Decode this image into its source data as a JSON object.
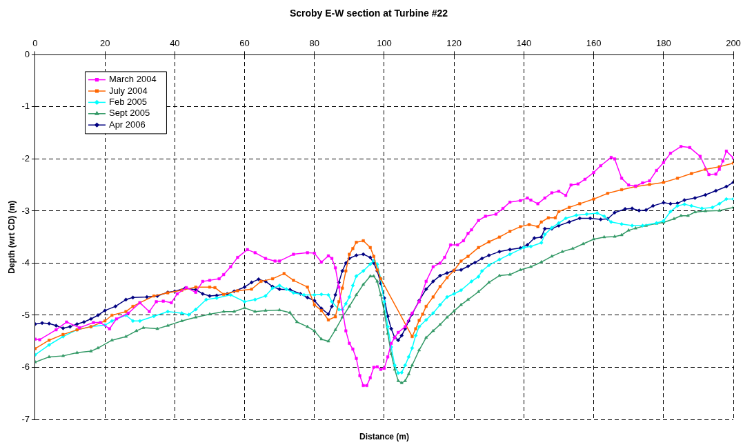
{
  "chart_data": {
    "type": "line",
    "title": "Scroby E-W section at Turbine #22",
    "xlabel": "Distance (m)",
    "ylabel": "Depth (wrt CD) (m)",
    "xlim": [
      0,
      200
    ],
    "xticks": [
      0,
      20,
      40,
      60,
      80,
      100,
      120,
      140,
      160,
      180,
      200
    ],
    "ylim": [
      -7,
      0
    ],
    "yticks": [
      -7,
      -6,
      -5,
      -4,
      -3,
      -2,
      -1,
      0
    ],
    "grid": true,
    "legend": "top left",
    "line_style": "solid",
    "series": [
      {
        "name": "March 2004",
        "color": "#ff00ff",
        "marker": "square",
        "x": [
          0,
          1.3,
          6,
          9,
          12.7,
          16.7,
          18.7,
          21.3,
          23.3,
          26.7,
          30,
          32.7,
          34.7,
          36.7,
          39,
          40.7,
          43.3,
          46,
          48,
          50,
          52.7,
          54,
          56,
          58,
          60.8,
          63,
          66,
          68.7,
          70,
          74,
          78,
          80,
          82,
          84,
          85,
          86,
          87,
          89,
          90,
          91,
          92,
          93,
          94,
          95,
          96,
          97,
          98,
          99,
          100,
          101,
          102,
          103,
          104,
          106,
          108,
          110,
          112,
          114,
          116,
          117.3,
          119,
          121,
          122.7,
          124,
          125,
          127,
          129,
          132,
          134,
          136,
          139,
          141,
          142,
          144,
          146,
          148,
          150,
          152,
          153.5,
          155.5,
          157.5,
          160,
          162,
          165,
          166,
          168,
          170,
          172,
          174,
          176,
          178,
          180,
          182,
          185,
          187.5,
          190.5,
          193,
          195,
          196,
          197,
          198,
          200
        ],
        "values": [
          -5.46,
          -5.47,
          -5.28,
          -5.13,
          -5.24,
          -5.14,
          -5.14,
          -5.26,
          -5.07,
          -4.96,
          -4.76,
          -4.93,
          -4.74,
          -4.73,
          -4.76,
          -4.59,
          -4.47,
          -4.56,
          -4.35,
          -4.33,
          -4.3,
          -4.22,
          -4.07,
          -3.89,
          -3.74,
          -3.8,
          -3.91,
          -3.96,
          -3.96,
          -3.83,
          -3.8,
          -3.81,
          -3.98,
          -3.86,
          -3.91,
          -4.09,
          -4.46,
          -5.3,
          -5.54,
          -5.65,
          -5.83,
          -6.16,
          -6.35,
          -6.35,
          -6.2,
          -6.0,
          -5.99,
          -6.04,
          -6.02,
          -5.8,
          -5.54,
          -5.43,
          -5.33,
          -5.22,
          -4.96,
          -4.74,
          -4.35,
          -4.07,
          -4.0,
          -3.89,
          -3.65,
          -3.65,
          -3.57,
          -3.43,
          -3.36,
          -3.18,
          -3.1,
          -3.06,
          -2.95,
          -2.83,
          -2.8,
          -2.75,
          -2.79,
          -2.86,
          -2.75,
          -2.65,
          -2.62,
          -2.7,
          -2.5,
          -2.48,
          -2.39,
          -2.26,
          -2.13,
          -1.97,
          -2.0,
          -2.37,
          -2.5,
          -2.52,
          -2.46,
          -2.42,
          -2.22,
          -2.07,
          -1.89,
          -1.76,
          -1.78,
          -1.95,
          -2.3,
          -2.29,
          -2.2,
          -2.04,
          -1.85,
          -1.98
        ]
      },
      {
        "name": "July 2004",
        "color": "#ff6600",
        "marker": "square",
        "x": [
          0,
          4,
          8,
          12,
          16,
          20,
          22,
          26,
          28,
          30,
          34,
          38,
          42,
          46,
          50,
          51.5,
          54,
          58,
          62,
          64.7,
          68,
          71.3,
          74,
          78,
          80,
          82,
          84,
          86,
          87,
          88,
          89,
          90,
          91,
          92,
          94,
          96,
          97,
          98,
          99,
          108,
          109,
          110,
          111,
          112,
          114,
          116,
          118,
          120,
          122,
          124,
          127,
          130,
          133,
          136,
          139,
          141.5,
          144,
          145,
          147,
          149,
          150,
          153,
          156,
          160,
          164,
          168,
          172,
          176,
          180,
          184,
          188,
          192,
          196,
          200
        ],
        "values": [
          -5.64,
          -5.48,
          -5.37,
          -5.28,
          -5.22,
          -5.11,
          -5.0,
          -4.93,
          -4.83,
          -4.76,
          -4.63,
          -4.57,
          -4.52,
          -4.46,
          -4.46,
          -4.47,
          -4.6,
          -4.53,
          -4.5,
          -4.35,
          -4.3,
          -4.2,
          -4.33,
          -4.46,
          -4.8,
          -4.91,
          -5.09,
          -5.03,
          -4.74,
          -4.48,
          -4.15,
          -3.83,
          -3.72,
          -3.6,
          -3.57,
          -3.7,
          -3.87,
          -4.13,
          -4.3,
          -5.41,
          -5.26,
          -5.1,
          -4.98,
          -4.83,
          -4.65,
          -4.45,
          -4.28,
          -4.14,
          -3.96,
          -3.87,
          -3.7,
          -3.59,
          -3.5,
          -3.39,
          -3.3,
          -3.26,
          -3.3,
          -3.21,
          -3.13,
          -3.13,
          -3.01,
          -2.93,
          -2.86,
          -2.77,
          -2.66,
          -2.59,
          -2.53,
          -2.49,
          -2.45,
          -2.37,
          -2.28,
          -2.2,
          -2.15,
          -2.08
        ]
      },
      {
        "name": "Feb 2005",
        "color": "#00ffff",
        "marker": "diamond",
        "x": [
          0,
          4,
          8,
          12,
          16,
          20,
          22,
          26,
          28,
          30,
          34,
          38,
          42,
          44,
          46,
          49,
          52,
          56,
          60,
          63,
          66,
          68,
          70,
          72,
          74,
          77,
          80,
          82,
          84,
          85,
          87,
          88,
          89,
          90,
          91,
          92,
          94,
          96,
          97,
          98,
          99,
          100,
          101,
          102,
          103,
          104,
          105,
          106,
          107,
          108,
          109,
          110,
          112,
          114,
          116,
          118,
          120,
          122,
          125,
          127,
          128,
          130,
          133,
          136,
          140,
          142,
          145,
          146,
          148,
          150,
          152,
          155,
          158,
          161,
          163,
          165,
          168,
          171,
          174,
          178,
          180,
          182,
          184,
          186,
          188,
          191,
          194,
          196,
          198,
          200
        ],
        "values": [
          -5.76,
          -5.57,
          -5.41,
          -5.28,
          -5.22,
          -5.19,
          -5.11,
          -5.0,
          -5.11,
          -5.11,
          -5.02,
          -4.93,
          -4.96,
          -4.99,
          -4.89,
          -4.7,
          -4.67,
          -4.61,
          -4.74,
          -4.7,
          -4.63,
          -4.48,
          -4.43,
          -4.5,
          -4.57,
          -4.61,
          -4.61,
          -4.6,
          -4.61,
          -4.74,
          -4.89,
          -4.89,
          -4.78,
          -4.65,
          -4.43,
          -4.25,
          -4.15,
          -4.02,
          -3.95,
          -4.02,
          -4.3,
          -4.74,
          -5.22,
          -5.61,
          -5.96,
          -6.11,
          -6.1,
          -5.96,
          -5.8,
          -5.63,
          -5.39,
          -5.22,
          -5.09,
          -4.96,
          -4.8,
          -4.65,
          -4.59,
          -4.52,
          -4.35,
          -4.26,
          -4.15,
          -4.04,
          -3.93,
          -3.83,
          -3.7,
          -3.68,
          -3.61,
          -3.45,
          -3.32,
          -3.23,
          -3.14,
          -3.08,
          -3.06,
          -3.04,
          -3.1,
          -3.21,
          -3.25,
          -3.28,
          -3.28,
          -3.23,
          -3.19,
          -3.01,
          -2.9,
          -2.87,
          -2.9,
          -2.95,
          -2.93,
          -2.86,
          -2.77,
          -2.77
        ]
      },
      {
        "name": "Sept 2005",
        "color": "#339966",
        "marker": "triangle",
        "x": [
          0,
          4,
          8,
          12,
          16,
          18,
          22,
          26,
          29,
          31,
          35,
          38,
          42,
          46,
          50,
          54,
          57,
          60,
          63,
          66,
          70,
          73,
          75,
          78,
          80,
          82,
          84,
          86,
          88,
          90,
          92,
          94,
          96,
          97,
          98,
          99,
          100,
          101,
          102,
          103,
          104,
          105,
          106,
          107,
          108,
          110,
          112,
          114,
          116,
          118,
          120,
          122,
          124,
          127,
          130,
          133,
          136,
          139,
          142,
          145,
          148,
          151,
          154,
          157,
          160,
          163,
          166,
          168,
          170,
          172,
          175,
          178,
          180,
          183,
          185,
          187,
          189,
          192,
          196,
          200
        ],
        "values": [
          -5.9,
          -5.8,
          -5.78,
          -5.72,
          -5.69,
          -5.63,
          -5.48,
          -5.41,
          -5.3,
          -5.24,
          -5.26,
          -5.2,
          -5.11,
          -5.04,
          -4.98,
          -4.93,
          -4.93,
          -4.86,
          -4.93,
          -4.91,
          -4.9,
          -4.95,
          -5.13,
          -5.22,
          -5.3,
          -5.46,
          -5.5,
          -5.28,
          -5.04,
          -4.83,
          -4.61,
          -4.41,
          -4.25,
          -4.25,
          -4.35,
          -4.61,
          -4.93,
          -5.35,
          -5.74,
          -6.04,
          -6.26,
          -6.3,
          -6.26,
          -6.13,
          -5.96,
          -5.67,
          -5.43,
          -5.3,
          -5.18,
          -5.04,
          -4.92,
          -4.8,
          -4.7,
          -4.55,
          -4.37,
          -4.24,
          -4.22,
          -4.13,
          -4.07,
          -3.98,
          -3.87,
          -3.78,
          -3.72,
          -3.63,
          -3.54,
          -3.5,
          -3.49,
          -3.46,
          -3.37,
          -3.33,
          -3.28,
          -3.24,
          -3.22,
          -3.15,
          -3.09,
          -3.09,
          -3.02,
          -3.0,
          -2.99,
          -2.93
        ]
      },
      {
        "name": "Apr 2006",
        "color": "#000080",
        "marker": "diamond",
        "x": [
          0,
          2,
          4,
          6,
          8,
          10,
          12,
          14,
          16,
          18,
          20,
          23,
          26,
          28,
          32,
          35,
          38,
          40,
          43,
          46,
          48,
          50,
          52,
          55,
          57,
          60,
          62,
          64,
          66,
          68,
          70,
          73,
          76,
          78,
          80,
          82,
          84,
          85,
          86,
          87,
          88,
          89,
          90,
          92,
          94,
          96,
          97,
          98,
          99,
          100,
          101,
          102,
          103,
          104,
          105,
          106,
          107,
          108,
          110,
          112,
          114,
          116,
          118,
          120,
          122,
          124,
          126,
          128,
          130,
          133,
          136,
          139,
          141,
          143,
          145,
          146,
          148,
          150,
          153,
          156,
          159,
          162,
          164,
          166,
          169,
          171,
          173,
          175,
          177,
          180,
          182,
          184,
          186,
          189,
          192,
          195,
          198,
          200
        ],
        "values": [
          -5.17,
          -5.15,
          -5.16,
          -5.2,
          -5.25,
          -5.22,
          -5.17,
          -5.13,
          -5.07,
          -5.0,
          -4.91,
          -4.83,
          -4.7,
          -4.66,
          -4.65,
          -4.63,
          -4.56,
          -4.54,
          -4.48,
          -4.51,
          -4.59,
          -4.63,
          -4.62,
          -4.59,
          -4.54,
          -4.46,
          -4.37,
          -4.31,
          -4.35,
          -4.45,
          -4.5,
          -4.51,
          -4.59,
          -4.66,
          -4.72,
          -4.87,
          -4.98,
          -4.83,
          -4.61,
          -4.37,
          -4.15,
          -4.0,
          -3.91,
          -3.85,
          -3.83,
          -3.89,
          -4.0,
          -4.15,
          -4.39,
          -4.67,
          -5.02,
          -5.26,
          -5.43,
          -5.48,
          -5.39,
          -5.26,
          -5.11,
          -4.98,
          -4.72,
          -4.5,
          -4.35,
          -4.24,
          -4.19,
          -4.14,
          -4.13,
          -4.06,
          -3.99,
          -3.91,
          -3.85,
          -3.78,
          -3.74,
          -3.71,
          -3.65,
          -3.52,
          -3.5,
          -3.34,
          -3.34,
          -3.28,
          -3.21,
          -3.14,
          -3.14,
          -3.16,
          -3.15,
          -3.03,
          -2.96,
          -2.95,
          -2.99,
          -2.98,
          -2.9,
          -2.84,
          -2.86,
          -2.85,
          -2.79,
          -2.75,
          -2.69,
          -2.61,
          -2.53,
          -2.45
        ]
      }
    ]
  }
}
